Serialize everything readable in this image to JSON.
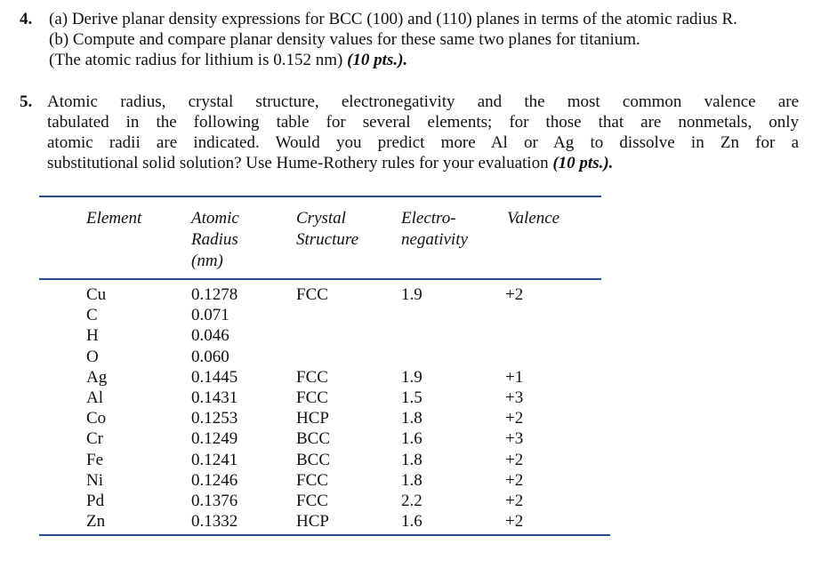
{
  "question4": {
    "number": "4.",
    "line_a": "(a) Derive planar density expressions for BCC (100) and (110) planes in terms of the atomic radius R.",
    "line_b": "(b) Compute and compare planar density values for these same two planes for titanium.",
    "line_c": "(The atomic radius for lithium is 0.152 nm)",
    "points": "(10 pts.)."
  },
  "question5": {
    "number": "5.",
    "line1": "Atomic radius, crystal structure, electronegativity and the most common valence are",
    "line2": "tabulated in the following table for several elements; for those that are nonmetals, only",
    "line3": "atomic radii are indicated. Would you predict more Al or Ag to dissolve in Zn for a",
    "line4": "substitutional solid solution? Use Hume-Rothery rules for your evaluation",
    "points": "(10 pts.)."
  },
  "table": {
    "headers": {
      "element": "Element",
      "radius_1": "Atomic",
      "radius_2": "Radius",
      "radius_3": "(nm)",
      "structure_1": "Crystal",
      "structure_2": "Structure",
      "electro_1": "Electro-",
      "electro_2": "negativity",
      "valence": "Valence"
    },
    "elements": [
      "Cu",
      "C",
      "H",
      "O",
      "Ag",
      "Al",
      "Co",
      "Cr",
      "Fe",
      "Ni",
      "Pd",
      "Zn"
    ],
    "radii": [
      "0.1278",
      "0.071",
      "0.046",
      "0.060",
      "0.1445",
      "0.1431",
      "0.1253",
      "0.1249",
      "0.1241",
      "0.1246",
      "0.1376",
      "0.1332"
    ],
    "structures": [
      "FCC",
      "",
      "",
      "",
      "FCC",
      "FCC",
      "HCP",
      "BCC",
      "BCC",
      "FCC",
      "FCC",
      "HCP"
    ],
    "electronegativities": [
      "1.9",
      "",
      "",
      "",
      "1.9",
      "1.5",
      "1.8",
      "1.6",
      "1.8",
      "1.8",
      "2.2",
      "1.6"
    ],
    "valences": [
      "+2",
      "",
      "",
      "",
      "+1",
      "+3",
      "+2",
      "+3",
      "+2",
      "+2",
      "+2",
      "+2"
    ],
    "rule_color": "#2a4d8a"
  }
}
